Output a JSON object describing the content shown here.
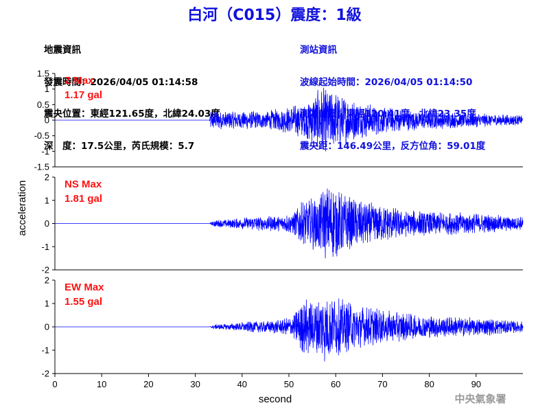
{
  "title": "白河（C015）震度：1級",
  "event_info": {
    "heading": "地震資訊",
    "origin_time": "發震時間：2026/04/05 01:14:58",
    "epicenter": "震央位置：東經121.65度，北緯24.03度",
    "depth_magnitude": "深　度：17.5公里，芮氏規模：5.7"
  },
  "station_info": {
    "heading": "測站資訊",
    "wave_start": "波線起始時間：2026/04/05 01:14:50",
    "station_location": "測站位置：東經120.41度，北緯23.35度",
    "distance_azimuth": "震央距：146.49公里，反方位角：59.01度"
  },
  "agency": "中央氣象署",
  "colors": {
    "title": "#1111dd",
    "trace": "#0000ff",
    "max_label": "#ff1111",
    "station_text": "#1111dd"
  },
  "chart_data": {
    "type": "line",
    "xlabel": "second",
    "ylabel": "acceleration",
    "xlim": [
      0,
      100
    ],
    "xticks": [
      "0",
      "10",
      "20",
      "30",
      "40",
      "50",
      "60",
      "70",
      "80",
      "90"
    ],
    "grid": false,
    "panels": [
      {
        "component": "Z",
        "max_title": "Z Max",
        "max_value": "1.17 gal",
        "ylim": [
          -1.5,
          1.5
        ],
        "yticks": [
          "1.5",
          "1",
          "0.5",
          "0",
          "-0.5",
          "-1",
          "-1.5"
        ],
        "envelope": [
          [
            0,
            0.0
          ],
          [
            33,
            0.0
          ],
          [
            33.3,
            0.35
          ],
          [
            35,
            0.3
          ],
          [
            40,
            0.3
          ],
          [
            45,
            0.3
          ],
          [
            50,
            0.45
          ],
          [
            53,
            0.6
          ],
          [
            55,
            0.8
          ],
          [
            57,
            1.1
          ],
          [
            59,
            1.0
          ],
          [
            61,
            0.85
          ],
          [
            65,
            0.6
          ],
          [
            70,
            0.45
          ],
          [
            75,
            0.35
          ],
          [
            80,
            0.3
          ],
          [
            90,
            0.25
          ],
          [
            100,
            0.15
          ]
        ]
      },
      {
        "component": "NS",
        "max_title": "NS Max",
        "max_value": "1.81 gal",
        "ylim": [
          -2,
          2
        ],
        "yticks": [
          "2",
          "1",
          "0",
          "-1",
          "-2"
        ],
        "envelope": [
          [
            0,
            0.0
          ],
          [
            33,
            0.0
          ],
          [
            34,
            0.15
          ],
          [
            38,
            0.2
          ],
          [
            42,
            0.3
          ],
          [
            48,
            0.35
          ],
          [
            51,
            0.5
          ],
          [
            52.5,
            1.0
          ],
          [
            56,
            1.2
          ],
          [
            58,
            1.7
          ],
          [
            60,
            1.6
          ],
          [
            62,
            1.3
          ],
          [
            66,
            1.0
          ],
          [
            70,
            0.8
          ],
          [
            75,
            0.6
          ],
          [
            80,
            0.55
          ],
          [
            90,
            0.45
          ],
          [
            100,
            0.3
          ]
        ]
      },
      {
        "component": "EW",
        "max_title": "EW Max",
        "max_value": "1.55 gal",
        "ylim": [
          -2,
          2
        ],
        "yticks": [
          "2",
          "1",
          "0",
          "-1",
          "-2"
        ],
        "envelope": [
          [
            0,
            0.0
          ],
          [
            33,
            0.0
          ],
          [
            34,
            0.1
          ],
          [
            38,
            0.15
          ],
          [
            42,
            0.25
          ],
          [
            48,
            0.3
          ],
          [
            51,
            0.5
          ],
          [
            52.5,
            1.2
          ],
          [
            56,
            1.3
          ],
          [
            57.5,
            1.55
          ],
          [
            60,
            1.3
          ],
          [
            63,
            1.1
          ],
          [
            66,
            0.9
          ],
          [
            70,
            0.75
          ],
          [
            75,
            0.6
          ],
          [
            80,
            0.5
          ],
          [
            90,
            0.4
          ],
          [
            100,
            0.25
          ]
        ]
      }
    ]
  }
}
